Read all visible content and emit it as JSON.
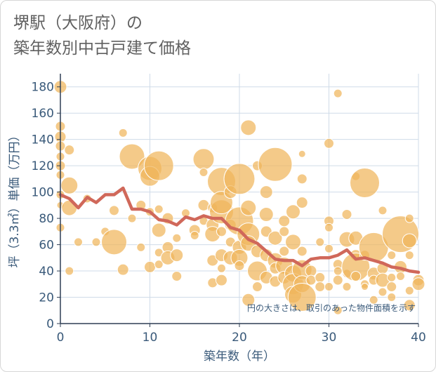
{
  "title": {
    "line1": "堺駅（大阪府）の",
    "line2": "築年数別中古戸建て価格"
  },
  "chart_data": {
    "type": "scatter",
    "title": "堺駅（大阪府）の築年数別中古戸建て価格",
    "xlabel": "築年数（年）",
    "ylabel": "坪（3.3㎡）単価（万円）",
    "xlim": [
      0,
      40
    ],
    "ylim": [
      0,
      190
    ],
    "xticks": [
      0,
      10,
      20,
      30,
      40
    ],
    "yticks": [
      0,
      20,
      40,
      60,
      80,
      100,
      120,
      140,
      160,
      180
    ],
    "grid": true,
    "annotation": "円の大きさは、取引のあった物件面積を示す",
    "colors": {
      "bubble": "#f0b55c",
      "line": "#d0685a",
      "axis_text": "#3a5a7a",
      "grid": "#cfdbe8"
    },
    "series": [
      {
        "kind": "bubble",
        "points": [
          [
            0,
            180,
            9
          ],
          [
            0,
            150,
            7
          ],
          [
            0,
            142,
            8
          ],
          [
            0,
            135,
            7
          ],
          [
            0,
            127,
            6
          ],
          [
            0,
            120,
            7
          ],
          [
            0,
            113,
            6
          ],
          [
            0,
            98,
            6
          ],
          [
            0,
            90,
            5
          ],
          [
            0,
            73,
            6
          ],
          [
            1,
            132,
            7
          ],
          [
            1,
            105,
            12
          ],
          [
            1,
            88,
            11
          ],
          [
            1,
            40,
            6
          ],
          [
            2,
            62,
            6
          ],
          [
            3,
            95,
            6
          ],
          [
            4,
            62,
            6
          ],
          [
            5,
            70,
            6
          ],
          [
            6,
            86,
            7
          ],
          [
            6,
            62,
            18
          ],
          [
            7,
            145,
            6
          ],
          [
            7,
            41,
            8
          ],
          [
            8,
            127,
            18
          ],
          [
            8,
            80,
            6
          ],
          [
            9,
            90,
            7
          ],
          [
            9,
            58,
            6
          ],
          [
            10,
            118,
            17
          ],
          [
            10,
            112,
            14
          ],
          [
            10,
            43,
            8
          ],
          [
            10,
            85,
            6
          ],
          [
            11,
            120,
            21
          ],
          [
            11,
            87,
            6
          ],
          [
            11,
            71,
            10
          ],
          [
            11,
            54,
            6
          ],
          [
            11,
            45,
            6
          ],
          [
            12,
            80,
            8
          ],
          [
            12,
            58,
            8
          ],
          [
            12,
            50,
            10
          ],
          [
            13,
            65,
            6
          ],
          [
            13,
            52,
            9
          ],
          [
            13,
            36,
            7
          ],
          [
            14,
            84,
            6
          ],
          [
            15,
            71,
            8
          ],
          [
            15,
            67,
            6
          ],
          [
            16,
            125,
            15
          ],
          [
            16,
            115,
            6
          ],
          [
            16,
            90,
            8
          ],
          [
            16,
            78,
            6
          ],
          [
            17,
            88,
            7
          ],
          [
            17,
            75,
            9
          ],
          [
            17,
            68,
            11
          ],
          [
            17,
            48,
            8
          ],
          [
            17,
            31,
            7
          ],
          [
            18,
            108,
            20
          ],
          [
            18,
            85,
            17
          ],
          [
            18,
            92,
            16
          ],
          [
            18,
            70,
            7
          ],
          [
            18,
            52,
            9
          ],
          [
            18,
            42,
            6
          ],
          [
            18,
            33,
            8
          ],
          [
            19,
            100,
            9
          ],
          [
            19,
            75,
            8
          ],
          [
            19,
            62,
            7
          ],
          [
            19,
            50,
            10
          ],
          [
            20,
            110,
            22
          ],
          [
            20,
            78,
            20
          ],
          [
            20,
            58,
            10
          ],
          [
            20,
            50,
            12
          ],
          [
            20,
            44,
            7
          ],
          [
            21,
            149,
            11
          ],
          [
            21,
            88,
            11
          ],
          [
            21,
            68,
            16
          ],
          [
            21,
            61,
            11
          ],
          [
            21,
            18,
            9
          ],
          [
            22,
            120,
            7
          ],
          [
            22,
            55,
            9
          ],
          [
            22,
            40,
            14
          ],
          [
            22,
            28,
            7
          ],
          [
            23,
            100,
            9
          ],
          [
            23,
            83,
            10
          ],
          [
            23,
            70,
            8
          ],
          [
            23,
            52,
            9
          ],
          [
            23,
            35,
            9
          ],
          [
            24,
            121,
            24
          ],
          [
            24,
            65,
            10
          ],
          [
            24,
            48,
            11
          ],
          [
            24,
            42,
            8
          ],
          [
            24,
            32,
            8
          ],
          [
            25,
            78,
            8
          ],
          [
            25,
            70,
            7
          ],
          [
            25,
            55,
            7
          ],
          [
            25,
            44,
            12
          ],
          [
            25,
            35,
            9
          ],
          [
            26,
            85,
            10
          ],
          [
            26,
            62,
            11
          ],
          [
            26,
            38,
            12
          ],
          [
            26,
            30,
            15
          ],
          [
            26,
            22,
            12
          ],
          [
            27,
            129,
            5
          ],
          [
            27,
            110,
            7
          ],
          [
            27,
            92,
            8
          ],
          [
            27,
            55,
            7
          ],
          [
            27,
            41,
            14
          ],
          [
            27,
            30,
            12
          ],
          [
            27,
            20,
            20
          ],
          [
            28,
            40,
            8
          ],
          [
            28,
            33,
            7
          ],
          [
            29,
            62,
            6
          ],
          [
            29,
            35,
            7
          ],
          [
            29,
            28,
            7
          ],
          [
            30,
            137,
            7
          ],
          [
            30,
            78,
            7
          ],
          [
            30,
            73,
            6
          ],
          [
            30,
            57,
            6
          ],
          [
            30,
            28,
            6
          ],
          [
            31,
            175,
            6
          ],
          [
            31,
            45,
            7
          ],
          [
            31,
            40,
            6
          ],
          [
            31,
            33,
            7
          ],
          [
            31,
            10,
            6
          ],
          [
            32,
            83,
            7
          ],
          [
            32,
            64,
            11
          ],
          [
            32,
            28,
            6
          ],
          [
            32,
            38,
            6
          ],
          [
            33,
            112,
            6
          ],
          [
            33,
            65,
            10
          ],
          [
            33,
            52,
            8
          ],
          [
            33,
            43,
            20
          ],
          [
            33,
            36,
            7
          ],
          [
            34,
            107,
            21
          ],
          [
            34,
            52,
            7
          ],
          [
            34,
            30,
            6
          ],
          [
            34,
            28,
            5
          ],
          [
            35,
            58,
            21
          ],
          [
            35,
            38,
            9
          ],
          [
            35,
            33,
            7
          ],
          [
            35,
            18,
            6
          ],
          [
            36,
            86,
            6
          ],
          [
            36,
            42,
            8
          ],
          [
            36,
            33,
            10
          ],
          [
            36,
            24,
            6
          ],
          [
            37,
            52,
            6
          ],
          [
            37,
            35,
            6
          ],
          [
            37,
            28,
            7
          ],
          [
            37,
            20,
            6
          ],
          [
            38,
            68,
            26
          ],
          [
            38,
            43,
            9
          ],
          [
            38,
            36,
            6
          ],
          [
            39,
            80,
            6
          ],
          [
            39,
            63,
            10
          ],
          [
            39,
            52,
            6
          ],
          [
            39,
            25,
            6
          ],
          [
            39,
            14,
            8
          ],
          [
            40,
            33,
            8
          ],
          [
            40,
            30,
            9
          ]
        ]
      },
      {
        "kind": "line",
        "points": [
          [
            0,
            98
          ],
          [
            1,
            95
          ],
          [
            2,
            88
          ],
          [
            3,
            96
          ],
          [
            4,
            92
          ],
          [
            5,
            98
          ],
          [
            6,
            98
          ],
          [
            7,
            103
          ],
          [
            8,
            87
          ],
          [
            9,
            87
          ],
          [
            10,
            85
          ],
          [
            11,
            79
          ],
          [
            12,
            78
          ],
          [
            13,
            75
          ],
          [
            14,
            81
          ],
          [
            15,
            79
          ],
          [
            16,
            82
          ],
          [
            17,
            80
          ],
          [
            18,
            80
          ],
          [
            19,
            73
          ],
          [
            20,
            71
          ],
          [
            21,
            64
          ],
          [
            22,
            61
          ],
          [
            23,
            55
          ],
          [
            24,
            49
          ],
          [
            25,
            48
          ],
          [
            26,
            48
          ],
          [
            27,
            44
          ],
          [
            28,
            49
          ],
          [
            29,
            50
          ],
          [
            30,
            50
          ],
          [
            31,
            52
          ],
          [
            32,
            56
          ],
          [
            33,
            49
          ],
          [
            34,
            50
          ],
          [
            35,
            48
          ],
          [
            36,
            46
          ],
          [
            37,
            43
          ],
          [
            38,
            42
          ],
          [
            39,
            40
          ],
          [
            40,
            39
          ]
        ]
      }
    ]
  }
}
